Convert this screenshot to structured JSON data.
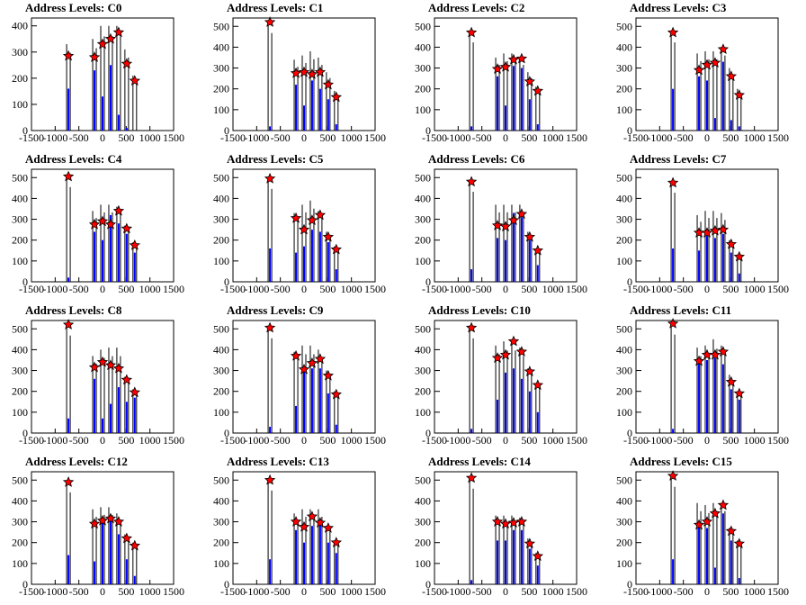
{
  "figure": {
    "colors": {
      "hist": "#0000ff",
      "line": "#000000",
      "marker": "#ff0000",
      "marker_edge": "#000000",
      "frame": "#000000"
    }
  },
  "chart_data": [
    {
      "type": "scatter",
      "title": "Address Levels: C0",
      "xlim": [
        -1500,
        1500
      ],
      "ylim": [
        0,
        430
      ],
      "xticks": [
        -1500,
        -1000,
        -500,
        0,
        500,
        1000,
        1500
      ],
      "yticks": [
        0,
        100,
        200,
        300,
        400
      ],
      "x": [
        -720,
        -170,
        0,
        170,
        340,
        510,
        680
      ],
      "y": [
        285,
        280,
        330,
        350,
        375,
        255,
        190
      ],
      "line_max": [
        330,
        350,
        400,
        400,
        400,
        310,
        210
      ],
      "hist": [
        160,
        230,
        130,
        250,
        60,
        10,
        0
      ]
    },
    {
      "type": "scatter",
      "title": "Address Levels: C1",
      "xlim": [
        -1500,
        1500
      ],
      "ylim": [
        0,
        540
      ],
      "xticks": [
        -1500,
        -1000,
        -500,
        0,
        500,
        1000,
        1500
      ],
      "yticks": [
        0,
        100,
        200,
        300,
        400,
        500
      ],
      "x": [
        -720,
        -170,
        0,
        170,
        340,
        510,
        680
      ],
      "y": [
        520,
        275,
        280,
        270,
        280,
        220,
        160
      ],
      "line_max": [
        520,
        340,
        360,
        380,
        350,
        280,
        190
      ],
      "hist": [
        20,
        220,
        120,
        240,
        200,
        150,
        30
      ]
    },
    {
      "type": "scatter",
      "title": "Address Levels: C2",
      "xlim": [
        -1500,
        1500
      ],
      "ylim": [
        0,
        540
      ],
      "xticks": [
        -1500,
        -1000,
        -500,
        0,
        500,
        1000,
        1500
      ],
      "yticks": [
        0,
        100,
        200,
        300,
        400,
        500
      ],
      "x": [
        -720,
        -170,
        0,
        170,
        340,
        510,
        680
      ],
      "y": [
        470,
        295,
        305,
        340,
        345,
        235,
        190
      ],
      "line_max": [
        470,
        350,
        370,
        370,
        350,
        280,
        210
      ],
      "hist": [
        20,
        260,
        120,
        310,
        300,
        150,
        30
      ]
    },
    {
      "type": "scatter",
      "title": "Address Levels: C3",
      "xlim": [
        -1500,
        1500
      ],
      "ylim": [
        0,
        540
      ],
      "xticks": [
        -1500,
        -1000,
        -500,
        0,
        500,
        1000,
        1500
      ],
      "yticks": [
        0,
        100,
        200,
        300,
        400,
        500
      ],
      "x": [
        -720,
        -170,
        0,
        170,
        340,
        510,
        680
      ],
      "y": [
        470,
        290,
        315,
        325,
        390,
        260,
        170
      ],
      "line_max": [
        470,
        370,
        380,
        380,
        400,
        300,
        200
      ],
      "hist": [
        200,
        260,
        240,
        60,
        330,
        50,
        20
      ]
    },
    {
      "type": "scatter",
      "title": "Address Levels: C4",
      "xlim": [
        -1500,
        1500
      ],
      "ylim": [
        0,
        540
      ],
      "xticks": [
        -1500,
        -1000,
        -500,
        0,
        500,
        1000,
        1500
      ],
      "yticks": [
        0,
        100,
        200,
        300,
        400,
        500
      ],
      "x": [
        -720,
        -170,
        0,
        170,
        340,
        510,
        680
      ],
      "y": [
        505,
        275,
        290,
        275,
        340,
        255,
        175
      ],
      "line_max": [
        505,
        340,
        370,
        370,
        360,
        270,
        190
      ],
      "hist": [
        20,
        240,
        200,
        320,
        280,
        230,
        140
      ]
    },
    {
      "type": "scatter",
      "title": "Address Levels: C5",
      "xlim": [
        -1500,
        1500
      ],
      "ylim": [
        0,
        540
      ],
      "xticks": [
        -1500,
        -1000,
        -500,
        0,
        500,
        1000,
        1500
      ],
      "yticks": [
        0,
        100,
        200,
        300,
        400,
        500
      ],
      "x": [
        -720,
        -170,
        0,
        170,
        340,
        510,
        680
      ],
      "y": [
        495,
        305,
        250,
        295,
        320,
        215,
        155
      ],
      "line_max": [
        495,
        330,
        370,
        390,
        340,
        240,
        170
      ],
      "hist": [
        160,
        140,
        170,
        250,
        240,
        190,
        60
      ]
    },
    {
      "type": "scatter",
      "title": "Address Levels: C6",
      "xlim": [
        -1500,
        1500
      ],
      "ylim": [
        0,
        540
      ],
      "xticks": [
        -1500,
        -1000,
        -500,
        0,
        500,
        1000,
        1500
      ],
      "yticks": [
        0,
        100,
        200,
        300,
        400,
        500
      ],
      "x": [
        -720,
        -170,
        0,
        170,
        340,
        510,
        680
      ],
      "y": [
        480,
        270,
        265,
        295,
        325,
        215,
        150
      ],
      "line_max": [
        480,
        370,
        370,
        370,
        370,
        240,
        160
      ],
      "hist": [
        60,
        210,
        200,
        330,
        310,
        200,
        80
      ]
    },
    {
      "type": "scatter",
      "title": "Address Levels: C7",
      "xlim": [
        -1500,
        1500
      ],
      "ylim": [
        0,
        540
      ],
      "xticks": [
        -1500,
        -1000,
        -500,
        0,
        500,
        1000,
        1500
      ],
      "yticks": [
        0,
        100,
        200,
        300,
        400,
        500
      ],
      "x": [
        -720,
        -170,
        0,
        170,
        340,
        510,
        680
      ],
      "y": [
        475,
        235,
        235,
        245,
        250,
        180,
        120
      ],
      "line_max": [
        475,
        320,
        340,
        340,
        330,
        200,
        130
      ],
      "hist": [
        160,
        150,
        220,
        210,
        230,
        140,
        40
      ]
    },
    {
      "type": "scatter",
      "title": "Address Levels: C8",
      "xlim": [
        -1500,
        1500
      ],
      "ylim": [
        0,
        540
      ],
      "xticks": [
        -1500,
        -1000,
        -500,
        0,
        500,
        1000,
        1500
      ],
      "yticks": [
        0,
        100,
        200,
        300,
        400,
        500
      ],
      "x": [
        -720,
        -170,
        0,
        170,
        340,
        510,
        680
      ],
      "y": [
        520,
        315,
        340,
        325,
        310,
        255,
        195
      ],
      "line_max": [
        520,
        370,
        400,
        410,
        410,
        270,
        210
      ],
      "hist": [
        70,
        260,
        70,
        140,
        220,
        150,
        170
      ]
    },
    {
      "type": "scatter",
      "title": "Address Levels: C9",
      "xlim": [
        -1500,
        1500
      ],
      "ylim": [
        0,
        540
      ],
      "xticks": [
        -1500,
        -1000,
        -500,
        0,
        500,
        1000,
        1500
      ],
      "yticks": [
        0,
        100,
        200,
        300,
        400,
        500
      ],
      "x": [
        -720,
        -170,
        0,
        170,
        340,
        510,
        680
      ],
      "y": [
        505,
        370,
        305,
        335,
        355,
        275,
        185
      ],
      "line_max": [
        505,
        390,
        420,
        420,
        400,
        300,
        200
      ],
      "hist": [
        30,
        130,
        320,
        310,
        310,
        190,
        40
      ]
    },
    {
      "type": "scatter",
      "title": "Address Levels: C10",
      "xlim": [
        -1500,
        1500
      ],
      "ylim": [
        0,
        540
      ],
      "xticks": [
        -1500,
        -1000,
        -500,
        0,
        500,
        1000,
        1500
      ],
      "yticks": [
        0,
        100,
        200,
        300,
        400,
        500
      ],
      "x": [
        -720,
        -170,
        0,
        170,
        340,
        510,
        680
      ],
      "y": [
        505,
        360,
        375,
        440,
        390,
        295,
        230
      ],
      "line_max": [
        505,
        420,
        440,
        440,
        410,
        310,
        240
      ],
      "hist": [
        20,
        160,
        290,
        310,
        260,
        200,
        100
      ]
    },
    {
      "type": "scatter",
      "title": "Address Levels: C11",
      "xlim": [
        -1500,
        1500
      ],
      "ylim": [
        0,
        540
      ],
      "xticks": [
        -1500,
        -1000,
        -500,
        0,
        500,
        1000,
        1500
      ],
      "yticks": [
        0,
        100,
        200,
        300,
        400,
        500
      ],
      "x": [
        -720,
        -170,
        0,
        170,
        340,
        510,
        680
      ],
      "y": [
        525,
        345,
        375,
        375,
        390,
        245,
        190
      ],
      "line_max": [
        525,
        410,
        420,
        450,
        420,
        280,
        200
      ],
      "hist": [
        20,
        340,
        350,
        360,
        330,
        210,
        160
      ]
    },
    {
      "type": "scatter",
      "title": "Address Levels: C12",
      "xlim": [
        -1500,
        1500
      ],
      "ylim": [
        0,
        540
      ],
      "xticks": [
        -1500,
        -1000,
        -500,
        0,
        500,
        1000,
        1500
      ],
      "yticks": [
        0,
        100,
        200,
        300,
        400,
        500
      ],
      "x": [
        -720,
        -170,
        0,
        170,
        340,
        510,
        680
      ],
      "y": [
        490,
        290,
        305,
        315,
        300,
        220,
        185
      ],
      "line_max": [
        490,
        360,
        370,
        370,
        340,
        240,
        200
      ],
      "hist": [
        140,
        110,
        300,
        310,
        240,
        120,
        40
      ]
    },
    {
      "type": "scatter",
      "title": "Address Levels: C13",
      "xlim": [
        -1500,
        1500
      ],
      "ylim": [
        0,
        540
      ],
      "xticks": [
        -1500,
        -1000,
        -500,
        0,
        500,
        1000,
        1500
      ],
      "yticks": [
        0,
        100,
        200,
        300,
        400,
        500
      ],
      "x": [
        -720,
        -170,
        0,
        170,
        340,
        510,
        680
      ],
      "y": [
        500,
        300,
        275,
        325,
        295,
        270,
        200
      ],
      "line_max": [
        500,
        340,
        360,
        360,
        360,
        280,
        210
      ],
      "hist": [
        120,
        260,
        200,
        280,
        290,
        200,
        150
      ]
    },
    {
      "type": "scatter",
      "title": "Address Levels: C14",
      "xlim": [
        -1500,
        1500
      ],
      "ylim": [
        0,
        540
      ],
      "xticks": [
        -1500,
        -1000,
        -500,
        0,
        500,
        1000,
        1500
      ],
      "yticks": [
        0,
        100,
        200,
        300,
        400,
        500
      ],
      "x": [
        -720,
        -170,
        0,
        170,
        340,
        510,
        680
      ],
      "y": [
        510,
        300,
        290,
        295,
        300,
        195,
        135
      ],
      "line_max": [
        510,
        330,
        330,
        330,
        320,
        220,
        150
      ],
      "hist": [
        20,
        210,
        210,
        260,
        260,
        170,
        90
      ]
    },
    {
      "type": "scatter",
      "title": "Address Levels: C15",
      "xlim": [
        -1500,
        1500
      ],
      "ylim": [
        0,
        540
      ],
      "xticks": [
        -1500,
        -1000,
        -500,
        0,
        500,
        1000,
        1500
      ],
      "yticks": [
        0,
        100,
        200,
        300,
        400,
        500
      ],
      "x": [
        -720,
        -170,
        0,
        170,
        340,
        510,
        680
      ],
      "y": [
        520,
        285,
        300,
        340,
        380,
        255,
        195
      ],
      "line_max": [
        520,
        390,
        380,
        390,
        390,
        270,
        210
      ],
      "hist": [
        120,
        280,
        270,
        80,
        340,
        210,
        30
      ]
    }
  ]
}
